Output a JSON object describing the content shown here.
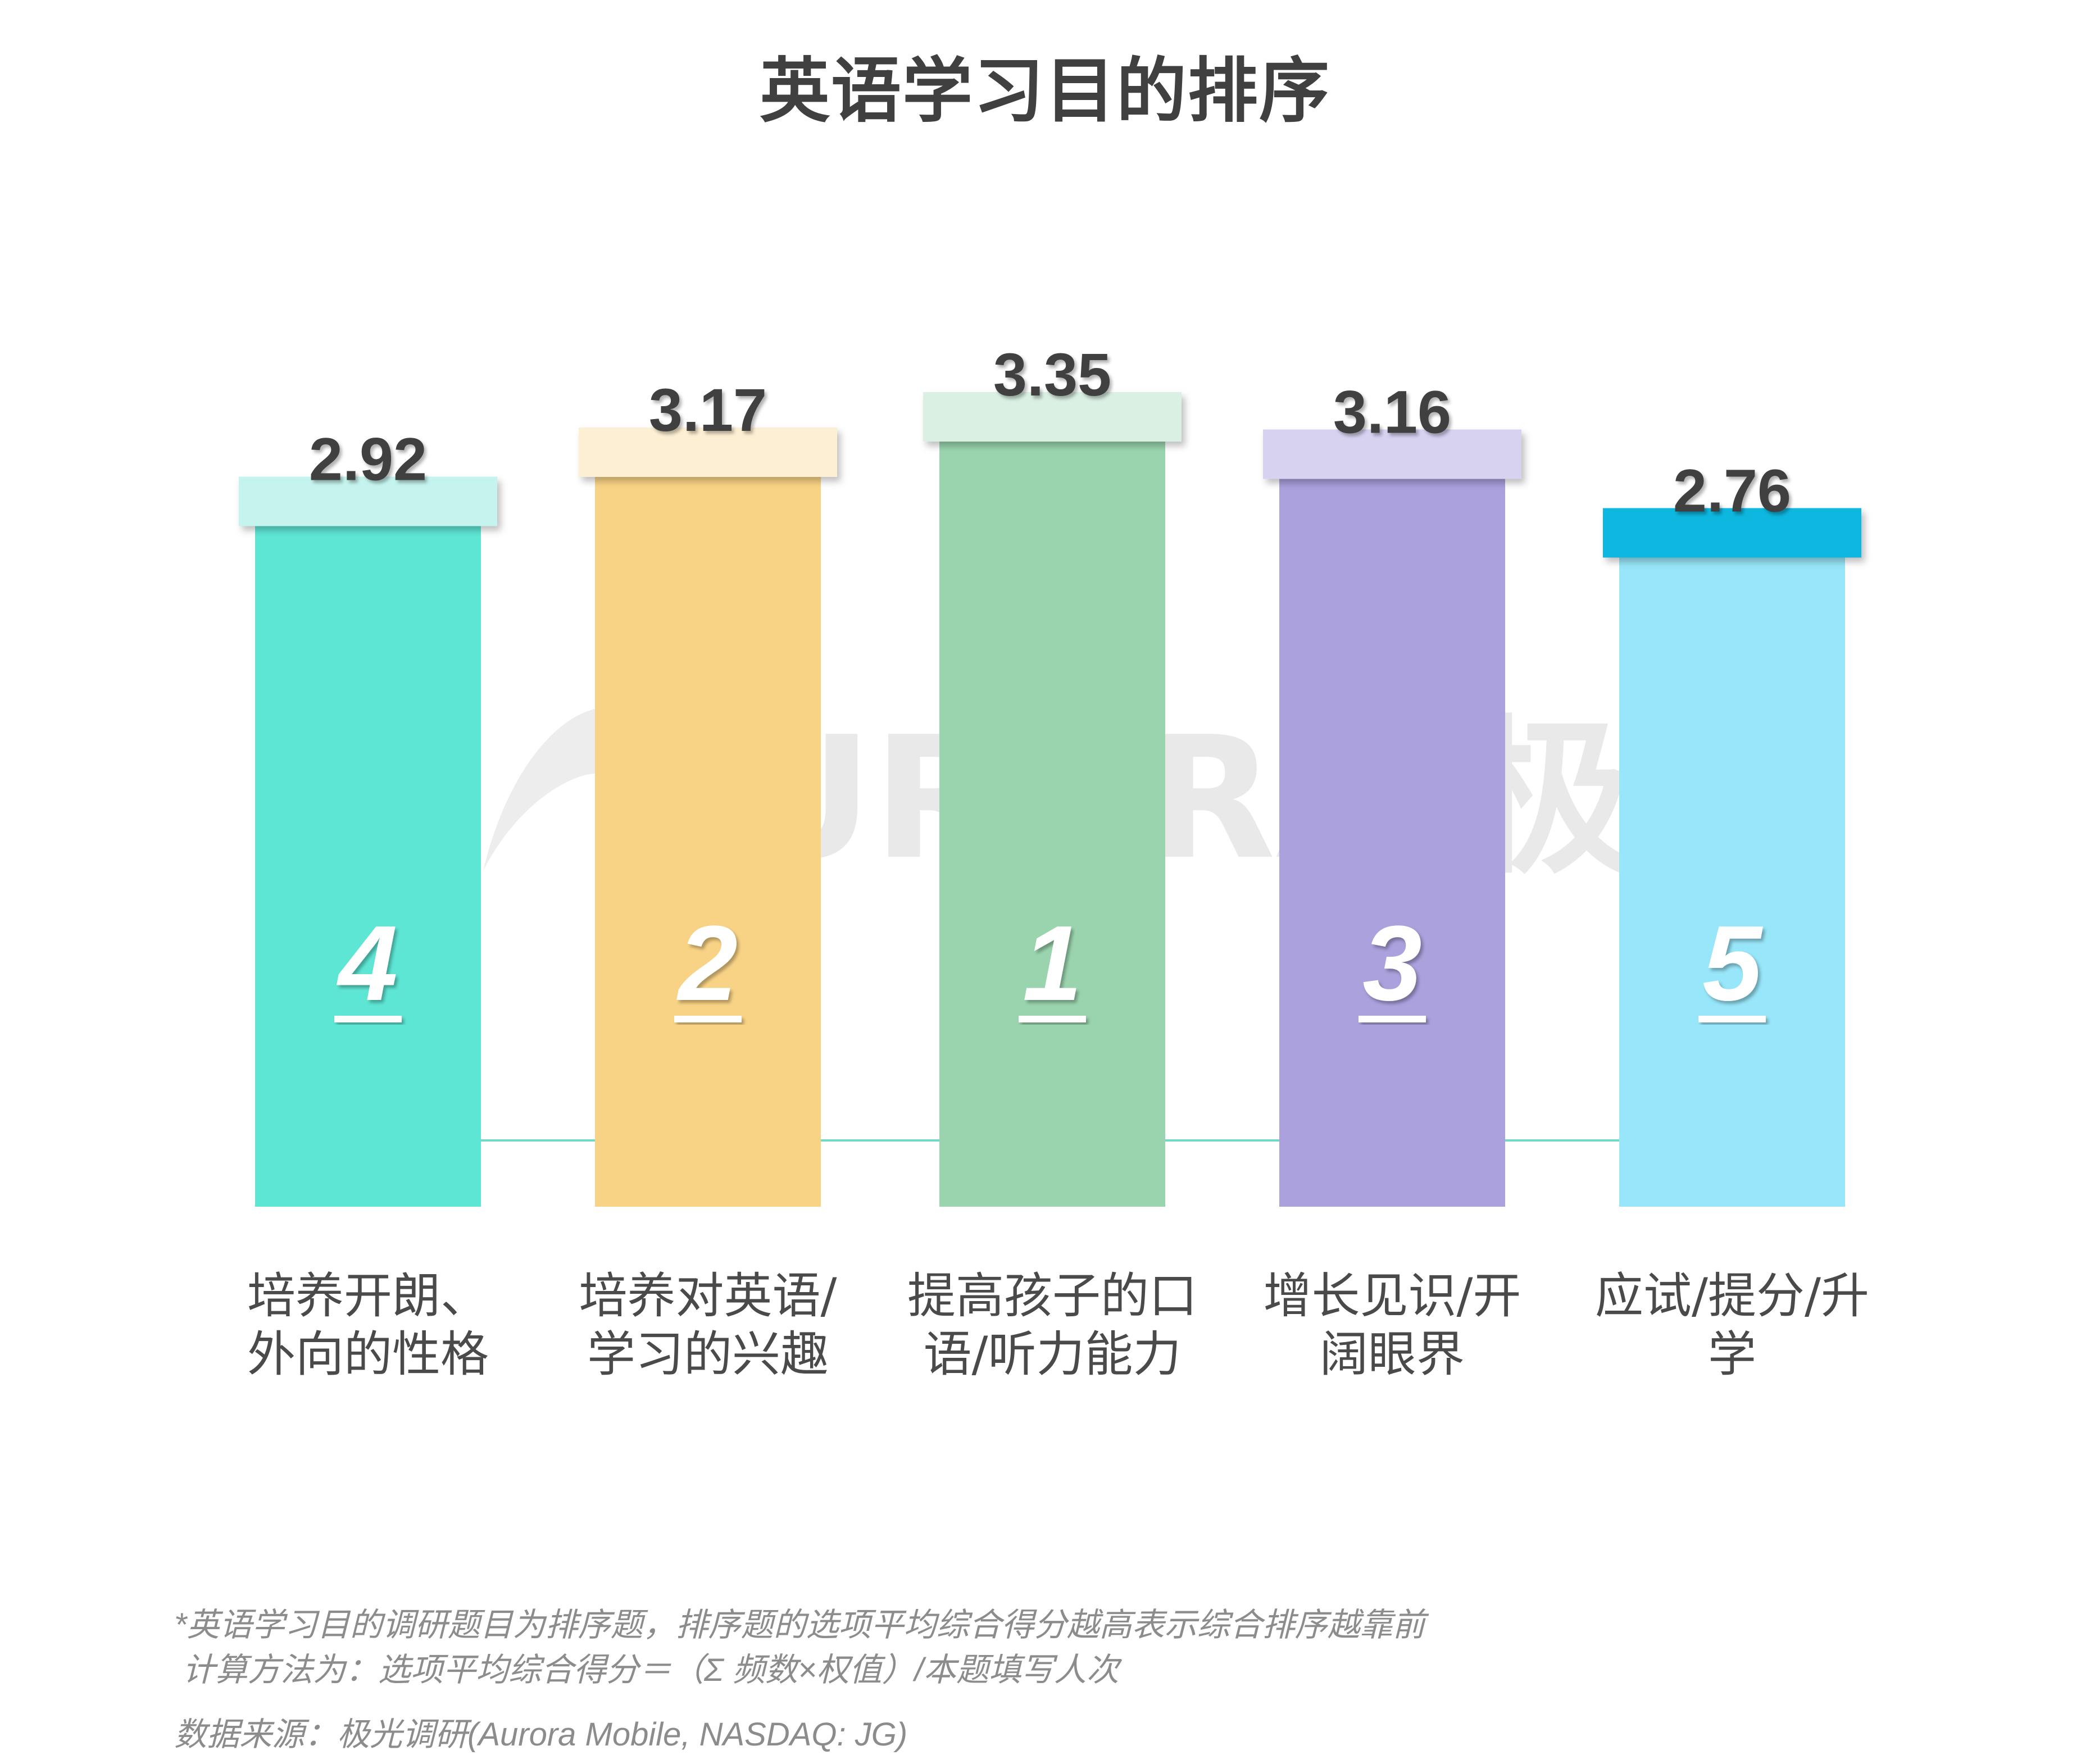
{
  "chart_data": {
    "type": "bar",
    "title": "英语学习目的排序",
    "categories": [
      "培养开朗、外向的性格",
      "培养对英语/学习的兴趣",
      "提高孩子的口语/听力能力",
      "增长见识/开阔眼界",
      "应试/提分/升学"
    ],
    "category_lines": [
      [
        "培养开朗、",
        "外向的性格"
      ],
      [
        "培养对英语/",
        "学习的兴趣"
      ],
      [
        "提高孩子的口",
        "语/听力能力"
      ],
      [
        "增长见识/开",
        "阔眼界"
      ],
      [
        "应试/提分/升",
        "学"
      ]
    ],
    "values": [
      2.92,
      3.17,
      3.35,
      3.16,
      2.76
    ],
    "value_labels": [
      "2.92",
      "3.17",
      "3.35",
      "3.16",
      "2.76"
    ],
    "ranks": [
      "4",
      "2",
      "1",
      "3",
      "5"
    ],
    "xlabel": "",
    "ylabel": "",
    "grid": false,
    "legend": "none",
    "colors": {
      "bars": [
        "#5ee6d4",
        "#f9d385",
        "#9ad4ae",
        "#aba1dd",
        "#98e6f9"
      ],
      "caps": [
        "#c5f4ee",
        "#fdefd3",
        "#d9f0e2",
        "#d8d2f1",
        "#08b7e0"
      ],
      "value_text": "#404040",
      "baseline": "#72d9c5"
    }
  },
  "watermark": "URORA 极光",
  "footnotes": {
    "note1": "*英语学习目的调研题目为排序题，排序题的选项平均综合得分越高表示综合排序越靠前",
    "note2": "计算方法为：选项平均综合得分＝（Σ 频数×权值）/本题填写人次",
    "source": "数据来源：极光调研(Aurora Mobile, NASDAQ: JG)"
  }
}
